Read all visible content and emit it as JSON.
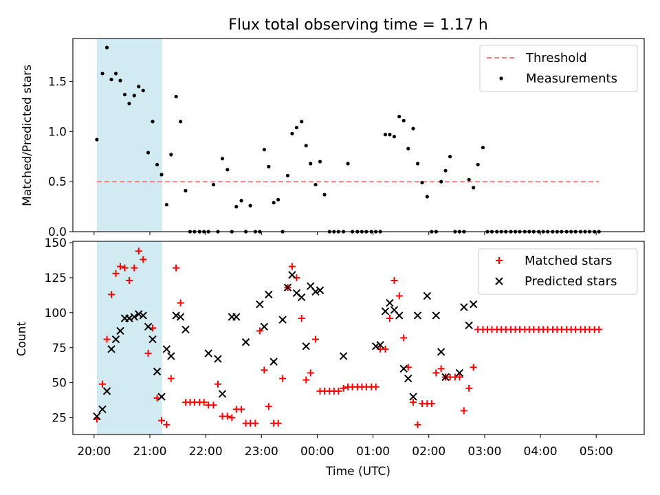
{
  "title": "Flux total observing time = 1.17 h",
  "colors": {
    "threshold": "#ff7f7f",
    "measurements": "#000000",
    "matched": "#ff0000",
    "predicted": "#000000",
    "shade": "#add8e6"
  },
  "chart_data": [
    {
      "type": "scatter",
      "ylabel": "Matched/Predicted stars",
      "ylim": [
        0,
        1.93
      ],
      "yticks": [
        "0.0",
        "0.5",
        "1.0",
        "1.5"
      ],
      "xlim": [
        -0.38,
        9.86
      ],
      "legend_position": "top-right",
      "legend": [
        "Threshold",
        "Measurements"
      ],
      "threshold": {
        "name": "Threshold",
        "y": 0.5,
        "x": [
          0.05,
          9.05
        ]
      },
      "shaded_span": [
        0.05,
        1.22
      ],
      "series": [
        {
          "name": "Measurements",
          "x": [
            0.05,
            0.15,
            0.23,
            0.31,
            0.39,
            0.47,
            0.55,
            0.63,
            0.72,
            0.8,
            0.88,
            0.97,
            1.05,
            1.13,
            1.21,
            1.3,
            1.38,
            1.47,
            1.55,
            1.64,
            1.72,
            1.8,
            1.89,
            1.97,
            2.05,
            2.14,
            2.22,
            2.3,
            2.39,
            2.47,
            2.55,
            2.64,
            2.72,
            2.8,
            2.89,
            2.97,
            3.05,
            3.13,
            3.22,
            3.3,
            3.38,
            3.47,
            3.55,
            3.63,
            3.72,
            3.8,
            3.88,
            3.97,
            4.05,
            4.13,
            4.22,
            4.3,
            4.38,
            4.47,
            4.55,
            4.63,
            4.72,
            4.8,
            4.88,
            4.97,
            5.05,
            5.13,
            5.22,
            5.3,
            5.38,
            5.47,
            5.55,
            5.63,
            5.72,
            5.8,
            5.88,
            5.97,
            6.05,
            6.13,
            6.22,
            6.3,
            6.38,
            6.47,
            6.55,
            6.63,
            6.72,
            6.8,
            6.88,
            6.97,
            7.05,
            7.13,
            7.22,
            7.3,
            7.38,
            7.47,
            7.55,
            7.63,
            7.72,
            7.8,
            7.88,
            7.97,
            8.05,
            8.13,
            8.22,
            8.3,
            8.38,
            8.47,
            8.55,
            8.63,
            8.72,
            8.8,
            8.88,
            8.97,
            9.05
          ],
          "y": [
            0.92,
            1.58,
            1.84,
            1.52,
            1.58,
            1.51,
            1.37,
            1.28,
            1.36,
            1.45,
            1.41,
            0.79,
            1.1,
            0.67,
            0.57,
            0.27,
            0.77,
            1.35,
            1.1,
            0.41,
            0.0,
            0.0,
            0.0,
            0.0,
            0.0,
            0.47,
            0.0,
            0.73,
            0.62,
            0.0,
            0.25,
            0.31,
            0.0,
            0.26,
            0.0,
            0.0,
            0.82,
            0.65,
            0.29,
            0.32,
            0.0,
            0.56,
            0.98,
            1.04,
            1.1,
            0.86,
            0.68,
            0.47,
            0.7,
            0.37,
            0.0,
            0.0,
            0.0,
            0.0,
            0.68,
            0.0,
            0.0,
            0.0,
            0.0,
            0.0,
            0.0,
            0.0,
            0.97,
            0.97,
            0.95,
            1.15,
            1.11,
            0.83,
            1.03,
            0.68,
            0.49,
            0.35,
            0.0,
            0.0,
            0.5,
            0.61,
            0.75,
            0.0,
            0.0,
            0.0,
            0.52,
            0.44,
            0.67,
            0.84,
            0.0,
            0.0,
            0.0,
            0.0,
            0.0,
            0.0,
            0.0,
            0.0,
            0.0,
            0.0,
            0.0,
            0.0,
            0.0,
            0.0,
            0.0,
            0.0,
            0.0,
            0.0,
            0.0,
            0.0,
            0.0,
            0.0,
            0.0,
            0.0,
            0.0
          ]
        }
      ]
    },
    {
      "type": "scatter",
      "xlabel": "Time (UTC)",
      "ylabel": "Count",
      "ylim": [
        13,
        151
      ],
      "yticks": [
        "25",
        "50",
        "75",
        "100",
        "125",
        "150"
      ],
      "xlim": [
        -0.38,
        9.86
      ],
      "xticks": [
        "20:00",
        "21:00",
        "22:00",
        "23:00",
        "00:00",
        "01:00",
        "02:00",
        "03:00",
        "04:00",
        "05:00"
      ],
      "legend_position": "top-right",
      "legend": [
        "Matched stars",
        "Predicted stars"
      ],
      "shaded_span": [
        0.05,
        1.22
      ],
      "series": [
        {
          "name": "Matched stars",
          "x": [
            0.05,
            0.15,
            0.23,
            0.31,
            0.39,
            0.47,
            0.55,
            0.63,
            0.72,
            0.8,
            0.88,
            0.97,
            1.05,
            1.13,
            1.21,
            1.3,
            1.38,
            1.47,
            1.55,
            1.64,
            1.72,
            1.8,
            1.89,
            1.97,
            2.05,
            2.14,
            2.22,
            2.3,
            2.39,
            2.47,
            2.55,
            2.64,
            2.72,
            2.8,
            2.89,
            2.97,
            3.05,
            3.13,
            3.22,
            3.3,
            3.38,
            3.47,
            3.55,
            3.63,
            3.72,
            3.8,
            3.88,
            3.97,
            4.05,
            4.13,
            4.22,
            4.3,
            4.38,
            4.47,
            4.55,
            4.63,
            4.72,
            4.8,
            4.88,
            4.97,
            5.05,
            5.13,
            5.22,
            5.3,
            5.38,
            5.47,
            5.55,
            5.63,
            5.72,
            5.8,
            5.88,
            5.97,
            6.05,
            6.13,
            6.22,
            6.3,
            6.38,
            6.47,
            6.55,
            6.63,
            6.72,
            6.8,
            6.88,
            6.97,
            7.05,
            7.13,
            7.22,
            7.3,
            7.38,
            7.47,
            7.55,
            7.63,
            7.72,
            7.8,
            7.88,
            7.97,
            8.05,
            8.13,
            8.22,
            8.3,
            8.38,
            8.47,
            8.55,
            8.63,
            8.72,
            8.8,
            8.88,
            8.97,
            9.05
          ],
          "y": [
            24,
            49,
            81,
            113,
            128,
            133,
            132,
            123,
            132,
            144,
            138,
            71,
            89,
            39,
            23,
            20,
            53,
            132,
            107,
            36,
            36,
            36,
            36,
            36,
            34,
            34,
            49,
            26,
            26,
            25,
            31,
            31,
            21,
            21,
            21,
            87,
            59,
            33,
            21,
            21,
            53,
            118,
            133,
            125,
            96,
            52,
            57,
            81,
            44,
            44,
            44,
            44,
            44,
            46,
            47,
            47,
            47,
            47,
            47,
            47,
            47,
            74,
            74,
            96,
            123,
            112,
            82,
            61,
            36,
            20,
            35,
            35,
            35,
            57,
            60,
            54,
            54,
            54,
            54,
            30,
            46,
            61,
            88,
            88,
            88,
            88,
            88,
            88,
            88,
            88,
            88,
            88,
            88,
            88,
            88,
            88,
            88,
            88,
            88,
            88,
            88,
            88,
            88,
            88,
            88,
            88,
            88,
            88,
            88
          ]
        },
        {
          "name": "Predicted stars",
          "x": [
            0.05,
            0.15,
            0.23,
            0.31,
            0.39,
            0.47,
            0.55,
            0.63,
            0.72,
            0.8,
            0.88,
            0.97,
            1.05,
            1.13,
            1.21,
            1.3,
            1.38,
            1.47,
            1.55,
            1.64,
            2.05,
            2.22,
            2.3,
            2.47,
            2.55,
            2.72,
            2.97,
            3.05,
            3.13,
            3.22,
            3.38,
            3.47,
            3.55,
            3.63,
            3.72,
            3.8,
            3.88,
            3.97,
            4.05,
            4.47,
            5.05,
            5.13,
            5.22,
            5.3,
            5.38,
            5.47,
            5.55,
            5.63,
            5.72,
            5.8,
            5.97,
            6.13,
            6.22,
            6.3,
            6.55,
            6.63,
            6.72,
            6.8
          ],
          "y": [
            26,
            31,
            44,
            74,
            81,
            87,
            96,
            96,
            97,
            99,
            98,
            90,
            81,
            58,
            40,
            74,
            69,
            98,
            97,
            88,
            71,
            67,
            42,
            97,
            97,
            79,
            106,
            90,
            113,
            65,
            95,
            118,
            127,
            114,
            111,
            76,
            119,
            115,
            116,
            69,
            76,
            77,
            101,
            107,
            102,
            98,
            60,
            53,
            40,
            98,
            112,
            98,
            72,
            54,
            57,
            104,
            91,
            106
          ]
        }
      ]
    }
  ]
}
